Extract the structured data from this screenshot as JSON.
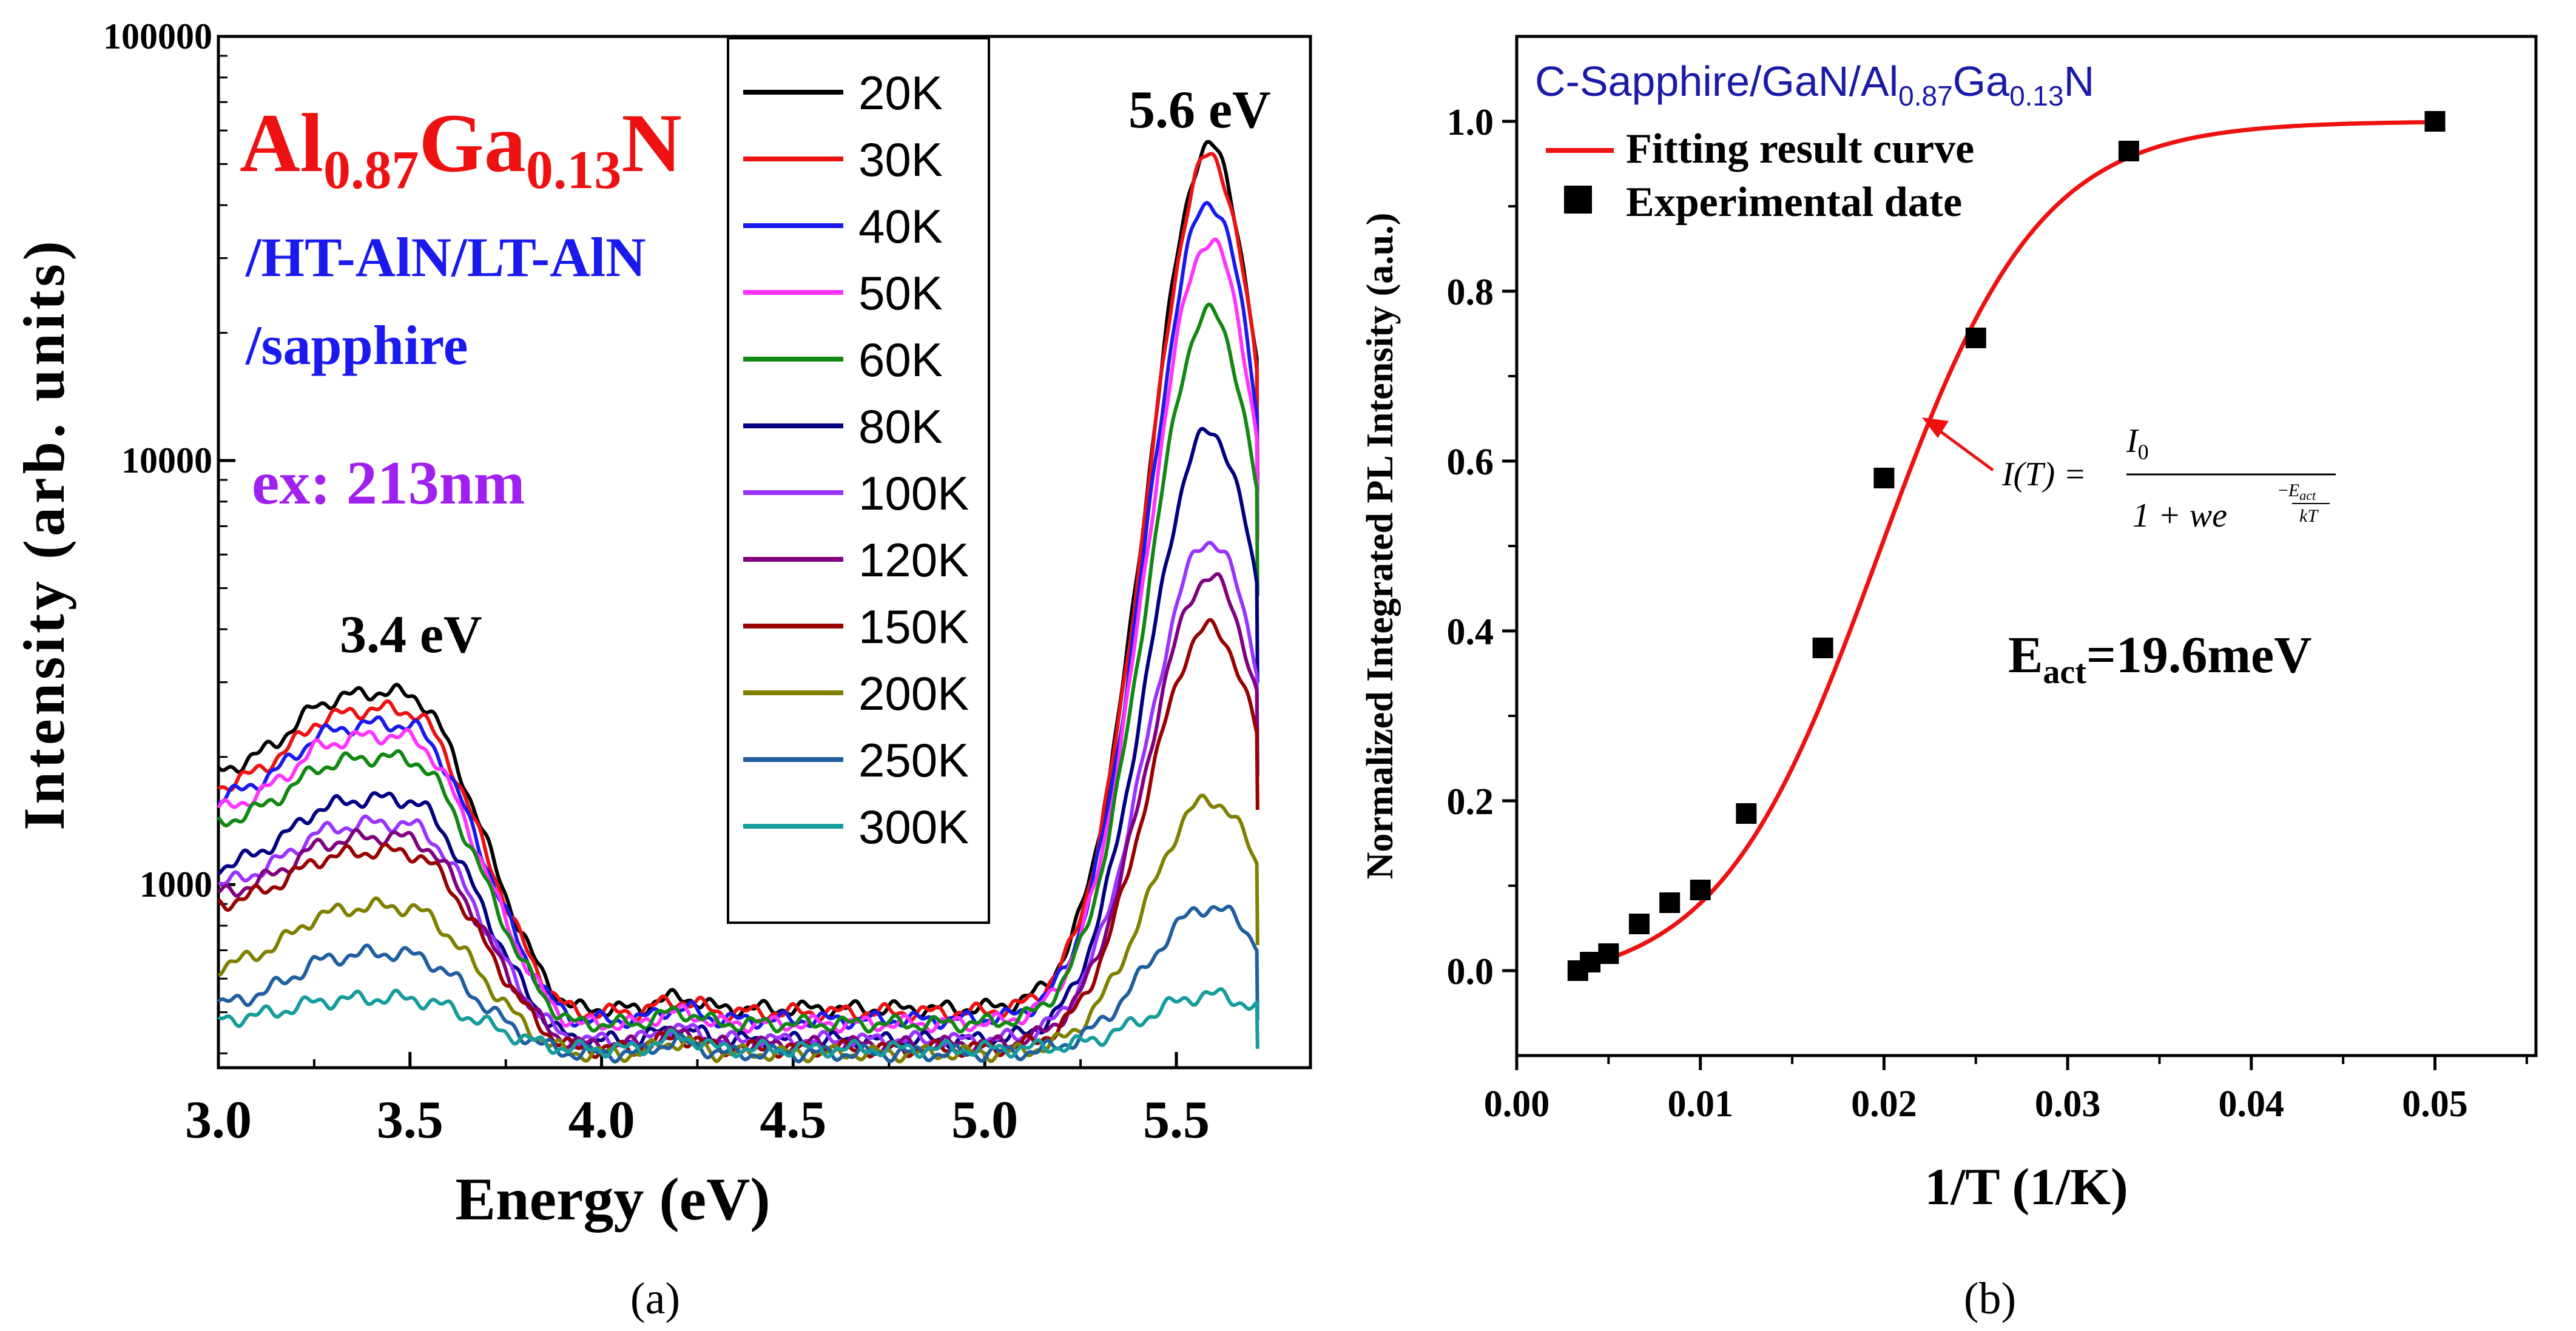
{
  "chart_data": [
    {
      "type": "line",
      "panel_label": "(a)",
      "title": "",
      "xlabel": "Energy (eV)",
      "ylabel": "Intensity (arb. units)",
      "xlim": [
        3.0,
        5.85
      ],
      "xticks": [
        3.0,
        3.5,
        4.0,
        4.5,
        5.0,
        5.5
      ],
      "xtick_labels": [
        "3.0",
        "3.5",
        "4.0",
        "4.5",
        "5.0",
        "5.5"
      ],
      "yscale": "log",
      "ylim": [
        370,
        100000
      ],
      "yticks": [
        1000,
        10000,
        100000
      ],
      "ytick_labels": [
        "1000",
        "10000",
        "100000"
      ],
      "annotations": {
        "sample_main": "Al",
        "sample_sub1": "0.87",
        "sample_mid": "Ga",
        "sample_sub2": "0.13",
        "sample_end": "N",
        "layer_line1": "/HT-AlN/LT-AlN",
        "layer_line2": "/sapphire",
        "excitation": "ex: 213nm",
        "peak_low": "3.4 eV",
        "peak_high": "5.6 eV"
      },
      "legend_position": "top-center",
      "colors": {
        "annotation_red": "#ee1111",
        "annotation_blue": "#1a1aee",
        "annotation_purple": "#a020f0"
      },
      "series": [
        {
          "name": "20K",
          "color": "#000000",
          "values": {
            "base": 1850,
            "p1": 2850,
            "val": 510,
            "p2": 57000,
            "end": 9000
          }
        },
        {
          "name": "30K",
          "color": "#ee1111",
          "values": {
            "base": 1700,
            "p1": 2600,
            "val": 500,
            "p2": 54000,
            "end": 8500
          }
        },
        {
          "name": "40K",
          "color": "#1a1aee",
          "values": {
            "base": 1600,
            "p1": 2400,
            "val": 480,
            "p2": 42000,
            "end": 7000
          }
        },
        {
          "name": "50K",
          "color": "#ff33ff",
          "values": {
            "base": 1500,
            "p1": 2250,
            "val": 470,
            "p2": 34000,
            "end": 6500
          }
        },
        {
          "name": "60K",
          "color": "#118811",
          "values": {
            "base": 1400,
            "p1": 2000,
            "val": 470,
            "p2": 23000,
            "end": 4800
          }
        },
        {
          "name": "80K",
          "color": "#000080",
          "values": {
            "base": 1100,
            "p1": 1600,
            "val": 430,
            "p2": 12000,
            "end": 3000
          }
        },
        {
          "name": "100K",
          "color": "#9933ff",
          "values": {
            "base": 1000,
            "p1": 1400,
            "val": 430,
            "p2": 6600,
            "end": 1900
          }
        },
        {
          "name": "120K",
          "color": "#800080",
          "values": {
            "base": 950,
            "p1": 1300,
            "val": 420,
            "p2": 5400,
            "end": 1800
          }
        },
        {
          "name": "150K",
          "color": "#990000",
          "values": {
            "base": 900,
            "p1": 1200,
            "val": 410,
            "p2": 4100,
            "end": 1500
          }
        },
        {
          "name": "200K",
          "color": "#808000",
          "values": {
            "base": 640,
            "p1": 890,
            "val": 400,
            "p2": 1600,
            "end": 720
          }
        },
        {
          "name": "250K",
          "color": "#1f5fa0",
          "values": {
            "base": 520,
            "p1": 690,
            "val": 400,
            "p2": 890,
            "end": 480
          }
        },
        {
          "name": "300K",
          "color": "#179c9c",
          "values": {
            "base": 480,
            "p1": 540,
            "val": 410,
            "p2": 550,
            "end": 410
          }
        }
      ]
    },
    {
      "type": "scatter",
      "panel_label": "(b)",
      "title": "C-Sapphire/GaN/Al0.87Ga0.13N",
      "title_parts": {
        "a": "C-Sapphire/GaN/Al",
        "s1": "0.87",
        "b": "Ga",
        "s2": "0.13",
        "c": "N"
      },
      "xlabel": "1/T (1/K)",
      "ylabel": "Normalized Integrated PL Intensity (a.u.)",
      "xlim": [
        0.0,
        0.0555
      ],
      "ylim": [
        -0.1,
        1.1
      ],
      "xticks": [
        0.0,
        0.01,
        0.02,
        0.03,
        0.04,
        0.05
      ],
      "xtick_labels": [
        "0.00",
        "0.01",
        "0.02",
        "0.03",
        "0.04",
        "0.05"
      ],
      "yticks": [
        0.0,
        0.2,
        0.4,
        0.6,
        0.8,
        1.0
      ],
      "ytick_labels": [
        "0.0",
        "0.2",
        "0.4",
        "0.6",
        "0.8",
        "1.0"
      ],
      "legend": [
        "Fitting result curve",
        "Experimental date"
      ],
      "legend_position": "top-left",
      "equation": {
        "lhs": "I(T) =",
        "num": "I",
        "num_sub": "0",
        "den": "1 + we",
        "exp_top": "E",
        "exp_top_sub": "act",
        "exp_bot": "kT"
      },
      "activation_energy": {
        "prefix": "E",
        "sub": "act",
        "value": "=19.6meV"
      },
      "points": [
        {
          "x": 0.00333,
          "y": 0.0
        },
        {
          "x": 0.004,
          "y": 0.01
        },
        {
          "x": 0.005,
          "y": 0.02
        },
        {
          "x": 0.00667,
          "y": 0.055
        },
        {
          "x": 0.00833,
          "y": 0.08
        },
        {
          "x": 0.01,
          "y": 0.095
        },
        {
          "x": 0.0125,
          "y": 0.185
        },
        {
          "x": 0.01667,
          "y": 0.38
        },
        {
          "x": 0.02,
          "y": 0.58
        },
        {
          "x": 0.025,
          "y": 0.745
        },
        {
          "x": 0.03333,
          "y": 0.965
        },
        {
          "x": 0.05,
          "y": 1.0
        }
      ],
      "fit": {
        "x_start": 0.0033,
        "x_end": 0.05,
        "k": 230,
        "x0": 0.0197,
        "y0": -0.0195
      },
      "colors": {
        "fit": "#ee1111",
        "points": "#000000",
        "title": "#1a1aa8"
      }
    }
  ]
}
